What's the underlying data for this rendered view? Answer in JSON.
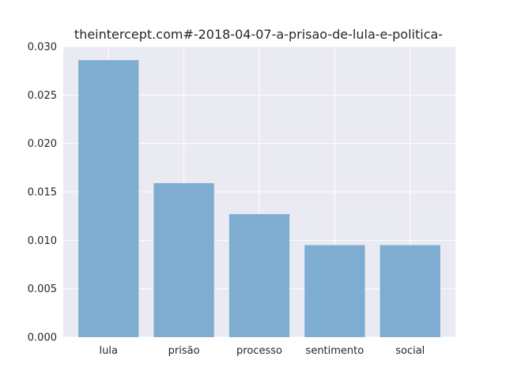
{
  "chart_data": {
    "type": "bar",
    "title": "theintercept.com#-2018-04-07-a-prisao-de-lula-e-politica-",
    "xlabel": "",
    "ylabel": "",
    "categories": [
      "lula",
      "prisão",
      "processo",
      "sentimento",
      "social"
    ],
    "values": [
      0.0286,
      0.0159,
      0.0127,
      0.0095,
      0.0095
    ],
    "ylim": [
      0,
      0.03
    ],
    "yticks": [
      "0.000",
      "0.005",
      "0.010",
      "0.015",
      "0.020",
      "0.025",
      "0.030"
    ],
    "grid": true,
    "colors": {
      "bar": "#7fadd2",
      "background": "#eaeaf2",
      "grid": "#ffffff"
    }
  }
}
